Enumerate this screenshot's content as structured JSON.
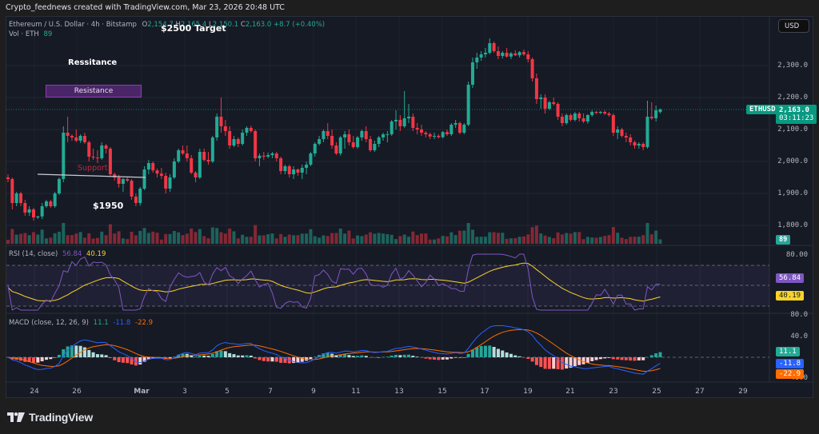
{
  "watermark": "Crypto_feednews created with TradingView.com, Mar 23, 2026 20:48 UTC",
  "currency_button": "USD",
  "symbol_legend": {
    "title": "Ethereum / U.S. Dollar · 4h · Bitstamp",
    "open_label": "O",
    "open": "2,154.7",
    "high_label": "H",
    "high": "2,165.4",
    "low_label": "L",
    "low": "2,150.1",
    "close_label": "C",
    "close": "2,163.0",
    "change": "+8.7 (+0.40%)",
    "volume_label": "Vol · ETH",
    "volume": "89"
  },
  "annotations": {
    "target": "$2500 Target",
    "resistance_text": "Ressitance",
    "resistance_box": "Resistance",
    "support": "Support",
    "price_1950": "$1950"
  },
  "price_axis": {
    "labels": [
      "2,300.0",
      "2,200.0",
      "2,100.0",
      "2,000.0",
      "1,900.0",
      "1,800.0"
    ],
    "values": [
      2300,
      2200,
      2100,
      2000,
      1900,
      1800
    ],
    "symbol_tag": "ETHUSD",
    "last_price": "2,163.0",
    "countdown": "03:11:23",
    "volume_tag": "89"
  },
  "rsi": {
    "legend": "RSI (14, close)",
    "value": "56.84",
    "ma_value": "40.19",
    "axis_top": "80.00",
    "value_color": "#7e57c2",
    "ma_color": "#f7d32a"
  },
  "macd": {
    "legend": "MACD (close, 12, 26, 9)",
    "histogram": "11.1",
    "macd": "-11.8",
    "signal": "-22.9",
    "axis_top": "80.0",
    "axis_40": "40.0",
    "axis_bottom": "-40.0",
    "macd_color": "#2962ff",
    "signal_color": "#ff6d00",
    "hist_color": "#22ab94"
  },
  "time_axis": [
    "24",
    "26",
    "Mar",
    "3",
    "5",
    "7",
    "9",
    "11",
    "13",
    "15",
    "17",
    "19",
    "21",
    "23",
    "25",
    "27",
    "29"
  ],
  "footer": {
    "brand": "TradingView"
  },
  "colors": {
    "up": "#22ab94",
    "down": "#f23645",
    "background": "#161a25"
  },
  "chart_data": {
    "type": "candlestick",
    "title": "Ethereum / U.S. Dollar · 4h · Bitstamp",
    "ylim": [
      1760,
      2390
    ],
    "note": "approximate OHLC read from 4h candles, Feb 22 – Mar 23",
    "candles": [
      [
        1950,
        1960,
        1935,
        1945
      ],
      [
        1945,
        1950,
        1850,
        1870
      ],
      [
        1870,
        1905,
        1860,
        1900
      ],
      [
        1900,
        1905,
        1860,
        1870
      ],
      [
        1870,
        1880,
        1830,
        1840
      ],
      [
        1840,
        1860,
        1830,
        1850
      ],
      [
        1850,
        1855,
        1815,
        1825
      ],
      [
        1825,
        1830,
        1820,
        1828
      ],
      [
        1828,
        1870,
        1820,
        1860
      ],
      [
        1860,
        1880,
        1855,
        1875
      ],
      [
        1875,
        1880,
        1855,
        1860
      ],
      [
        1860,
        1905,
        1855,
        1900
      ],
      [
        1900,
        1950,
        1895,
        1945
      ],
      [
        1945,
        2110,
        1935,
        2090
      ],
      [
        2090,
        2140,
        2060,
        2080
      ],
      [
        2080,
        2085,
        2065,
        2075
      ],
      [
        2075,
        2100,
        2060,
        2065
      ],
      [
        2065,
        2085,
        2058,
        2080
      ],
      [
        2080,
        2090,
        2055,
        2060
      ],
      [
        2060,
        2065,
        2000,
        2015
      ],
      [
        2015,
        2040,
        2005,
        2012
      ],
      [
        2012,
        2035,
        1995,
        2010
      ],
      [
        2010,
        2060,
        2005,
        2050
      ],
      [
        2050,
        2055,
        2025,
        2040
      ],
      [
        2040,
        2045,
        1955,
        1960
      ],
      [
        1960,
        1965,
        1940,
        1950
      ],
      [
        1950,
        1958,
        1918,
        1930
      ],
      [
        1930,
        1948,
        1905,
        1945
      ],
      [
        1945,
        1950,
        1935,
        1940
      ],
      [
        1940,
        1945,
        1880,
        1890
      ],
      [
        1890,
        1900,
        1860,
        1870
      ],
      [
        1870,
        1920,
        1862,
        1915
      ],
      [
        1915,
        1985,
        1910,
        1975
      ],
      [
        1975,
        2005,
        1960,
        1995
      ],
      [
        1995,
        2000,
        1965,
        1972
      ],
      [
        1972,
        1978,
        1950,
        1962
      ],
      [
        1962,
        1980,
        1945,
        1955
      ],
      [
        1955,
        1965,
        1900,
        1915
      ],
      [
        1915,
        1960,
        1905,
        1950
      ],
      [
        1950,
        2010,
        1945,
        2000
      ],
      [
        2000,
        2040,
        1995,
        2035
      ],
      [
        2035,
        2050,
        2020,
        2025
      ],
      [
        2025,
        2050,
        2000,
        2010
      ],
      [
        2010,
        2020,
        1960,
        1965
      ],
      [
        1965,
        1970,
        1935,
        1950
      ],
      [
        1950,
        2040,
        1945,
        2030
      ],
      [
        2030,
        2040,
        2000,
        2005
      ],
      [
        2005,
        2030,
        1990,
        2000
      ],
      [
        2000,
        2080,
        1995,
        2075
      ],
      [
        2075,
        2150,
        2065,
        2140
      ],
      [
        2140,
        2200,
        2090,
        2110
      ],
      [
        2110,
        2130,
        2080,
        2095
      ],
      [
        2095,
        2110,
        2040,
        2050
      ],
      [
        2050,
        2080,
        2045,
        2070
      ],
      [
        2070,
        2075,
        2045,
        2055
      ],
      [
        2055,
        2100,
        2050,
        2090
      ],
      [
        2090,
        2110,
        2080,
        2105
      ],
      [
        2105,
        2112,
        2090,
        2095
      ],
      [
        2095,
        2100,
        2000,
        2010
      ],
      [
        2010,
        2025,
        1985,
        2018
      ],
      [
        2018,
        2030,
        2005,
        2015
      ],
      [
        2015,
        2028,
        2010,
        2020
      ],
      [
        2020,
        2030,
        2010,
        2025
      ],
      [
        2025,
        2030,
        2000,
        2010
      ],
      [
        2010,
        2015,
        1960,
        1970
      ],
      [
        1970,
        1990,
        1960,
        1985
      ],
      [
        1985,
        1990,
        1950,
        1960
      ],
      [
        1960,
        1985,
        1945,
        1975
      ],
      [
        1975,
        1978,
        1955,
        1965
      ],
      [
        1965,
        1990,
        1945,
        1980
      ],
      [
        1980,
        2000,
        1960,
        1990
      ],
      [
        1990,
        2030,
        1985,
        2025
      ],
      [
        2025,
        2060,
        2015,
        2055
      ],
      [
        2055,
        2080,
        2050,
        2070
      ],
      [
        2070,
        2100,
        2060,
        2095
      ],
      [
        2095,
        2120,
        2070,
        2080
      ],
      [
        2080,
        2100,
        2040,
        2050
      ],
      [
        2050,
        2060,
        2020,
        2025
      ],
      [
        2025,
        2080,
        2018,
        2075
      ],
      [
        2075,
        2095,
        2040,
        2085
      ],
      [
        2085,
        2100,
        2050,
        2060
      ],
      [
        2060,
        2080,
        2040,
        2045
      ],
      [
        2045,
        2080,
        2040,
        2075
      ],
      [
        2075,
        2100,
        2065,
        2095
      ],
      [
        2095,
        2110,
        2060,
        2070
      ],
      [
        2070,
        2080,
        2030,
        2035
      ],
      [
        2035,
        2065,
        2030,
        2055
      ],
      [
        2055,
        2080,
        2045,
        2075
      ],
      [
        2075,
        2090,
        2065,
        2085
      ],
      [
        2085,
        2095,
        2060,
        2085
      ],
      [
        2085,
        2130,
        2080,
        2125
      ],
      [
        2125,
        2160,
        2100,
        2130
      ],
      [
        2130,
        2145,
        2095,
        2110
      ],
      [
        2110,
        2220,
        2105,
        2135
      ],
      [
        2135,
        2180,
        2120,
        2140
      ],
      [
        2140,
        2150,
        2095,
        2105
      ],
      [
        2105,
        2120,
        2085,
        2100
      ],
      [
        2100,
        2115,
        2080,
        2090
      ],
      [
        2090,
        2095,
        2075,
        2085
      ],
      [
        2085,
        2090,
        2070,
        2078
      ],
      [
        2078,
        2090,
        2070,
        2080
      ],
      [
        2080,
        2085,
        2072,
        2076
      ],
      [
        2076,
        2095,
        2072,
        2092
      ],
      [
        2092,
        2100,
        2080,
        2085
      ],
      [
        2085,
        2120,
        2080,
        2115
      ],
      [
        2115,
        2130,
        2105,
        2120
      ],
      [
        2120,
        2125,
        2085,
        2090
      ],
      [
        2090,
        2120,
        2085,
        2115
      ],
      [
        2115,
        2250,
        2110,
        2240
      ],
      [
        2240,
        2325,
        2230,
        2310
      ],
      [
        2310,
        2340,
        2290,
        2325
      ],
      [
        2325,
        2345,
        2315,
        2335
      ],
      [
        2335,
        2355,
        2325,
        2340
      ],
      [
        2340,
        2385,
        2335,
        2370
      ],
      [
        2370,
        2375,
        2340,
        2345
      ],
      [
        2345,
        2360,
        2320,
        2330
      ],
      [
        2330,
        2345,
        2322,
        2340
      ],
      [
        2340,
        2355,
        2325,
        2328
      ],
      [
        2328,
        2342,
        2320,
        2338
      ],
      [
        2338,
        2348,
        2330,
        2332
      ],
      [
        2332,
        2345,
        2325,
        2342
      ],
      [
        2342,
        2350,
        2330,
        2335
      ],
      [
        2335,
        2345,
        2310,
        2320
      ],
      [
        2320,
        2325,
        2250,
        2260
      ],
      [
        2260,
        2275,
        2180,
        2195
      ],
      [
        2195,
        2210,
        2165,
        2200
      ],
      [
        2200,
        2210,
        2150,
        2165
      ],
      [
        2165,
        2190,
        2160,
        2185
      ],
      [
        2185,
        2200,
        2175,
        2180
      ],
      [
        2180,
        2185,
        2130,
        2140
      ],
      [
        2140,
        2150,
        2110,
        2120
      ],
      [
        2120,
        2150,
        2115,
        2145
      ],
      [
        2145,
        2150,
        2125,
        2130
      ],
      [
        2130,
        2155,
        2125,
        2150
      ],
      [
        2150,
        2155,
        2125,
        2135
      ],
      [
        2135,
        2150,
        2120,
        2125
      ],
      [
        2125,
        2148,
        2118,
        2145
      ],
      [
        2145,
        2160,
        2140,
        2155
      ],
      [
        2155,
        2158,
        2148,
        2152
      ],
      [
        2152,
        2158,
        2148,
        2155
      ],
      [
        2155,
        2160,
        2145,
        2150
      ],
      [
        2150,
        2155,
        2140,
        2145
      ],
      [
        2145,
        2150,
        2080,
        2090
      ],
      [
        2090,
        2110,
        2070,
        2100
      ],
      [
        2100,
        2105,
        2075,
        2080
      ],
      [
        2080,
        2090,
        2060,
        2075
      ],
      [
        2075,
        2085,
        2050,
        2060
      ],
      [
        2060,
        2065,
        2040,
        2050
      ],
      [
        2050,
        2060,
        2040,
        2055
      ],
      [
        2055,
        2060,
        2035,
        2045
      ],
      [
        2045,
        2190,
        2040,
        2140
      ],
      [
        2140,
        2185,
        2130,
        2135
      ],
      [
        2135,
        2175,
        2125,
        2160
      ],
      [
        2154.7,
        2165.4,
        2150.1,
        2163.0
      ]
    ],
    "volume_relative": "bars at bottom of price pane, last bar 89 ETH"
  }
}
